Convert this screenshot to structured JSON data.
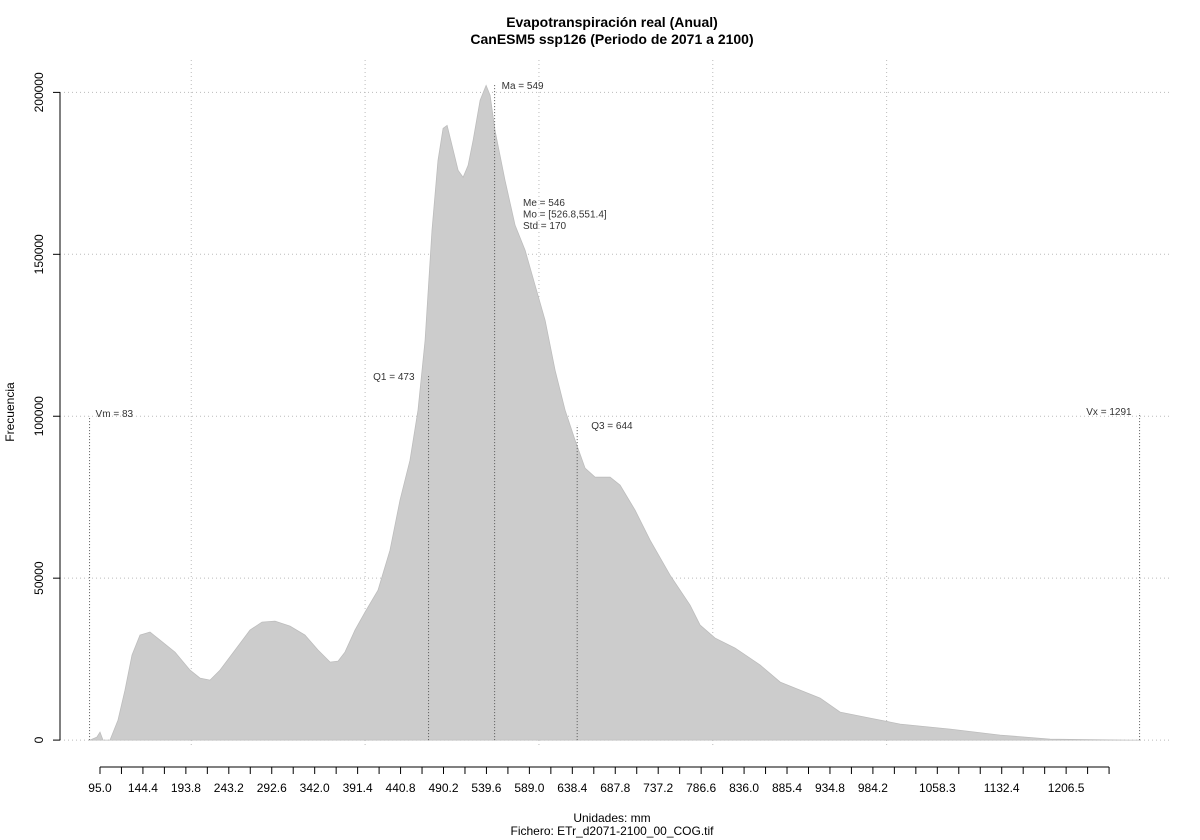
{
  "chart_data": {
    "type": "area",
    "title": "Evapotranspiración real (Anual)",
    "subtitle": "CanESM5 ssp126 (Periodo de 2071 a 2100)",
    "x_label": "Unidades: mm",
    "caption": "Fichero: ETr_d2071-2100_00_COG.tif",
    "y_label": "Frecuencia",
    "color": "#cccccc",
    "x": [
      83.5,
      91.5,
      95,
      98.5,
      106.5,
      115.7,
      123.8,
      131.8,
      141.0,
      152.5,
      164.0,
      181.3,
      198.6,
      210.1,
      221.6,
      233.1,
      250.3,
      267.6,
      281.4,
      296.4,
      313.6,
      330.9,
      345.9,
      359.7,
      368.9,
      376.9,
      388.4,
      399.9,
      414.9,
      428.7,
      440.2,
      451.7,
      460.9,
      469.0,
      477.0,
      483.9,
      489.7,
      494.3,
      500.0,
      507.0,
      512.7,
      518.5,
      524.2,
      532.3,
      539.2,
      543.8,
      549.5,
      561.0,
      572.6,
      584.1,
      595.6,
      607.1,
      618.6,
      630.1,
      641.6,
      653.1,
      664.6,
      681.9,
      693.4,
      710.6,
      727.9,
      750.9,
      773.9,
      785.4,
      802.7,
      825.7,
      854.5,
      877.5,
      900.5,
      923.5,
      946.5,
      981.0,
      1015.6,
      1073.1,
      1130.6,
      1188.2,
      1280.2,
      1291.7
    ],
    "y": [
      0,
      926,
      2469,
      0,
      0,
      6172,
      15432,
      26235,
      32407,
      33333,
      30864,
      27160,
      21605,
      19136,
      18519,
      21605,
      27778,
      33951,
      36420,
      36728,
      35185,
      32407,
      27778,
      24074,
      24383,
      27160,
      33951,
      39506,
      46296,
      58642,
      74074,
      86420,
      101852,
      123457,
      157407,
      179012,
      188889,
      189815,
      183642,
      175926,
      173765,
      177469,
      185185,
      197531,
      202160,
      199074,
      188272,
      172840,
      158951,
      151235,
      140432,
      129630,
      114198,
      101852,
      92593,
      83951,
      81173,
      81173,
      78704,
      70988,
      61728,
      50926,
      41667,
      35494,
      31481,
      28395,
      23148,
      17901,
      15432,
      12963,
      8642,
      6790,
      4938,
      3395,
      1543,
      309,
      0,
      0
    ],
    "xlim": [
      49,
      1326
    ],
    "ylim": [
      -8000,
      210000
    ],
    "xticks": [
      {
        "value": 95,
        "label": "95.0"
      },
      144.4,
      193.8,
      243.2,
      292.6,
      {
        "value": 342,
        "label": "342.0"
      },
      391.4,
      440.8,
      490.2,
      539.6,
      {
        "value": 589,
        "label": "589.0"
      },
      638.4,
      687.8,
      737.2,
      786.6,
      {
        "value": 836,
        "label": "836.0"
      },
      885.4,
      934.8,
      984.2,
      1058.3,
      1132.4,
      1206.5
    ],
    "xminorticks": [
      119.7,
      169.1,
      218.5,
      267.9,
      317.3,
      366.7,
      416.1,
      465.5,
      514.9,
      564.3,
      613.7,
      663.1,
      712.5,
      761.9,
      811.3,
      860.7,
      910.1,
      959.5,
      1008.9,
      1033.6,
      1083.0,
      1107.7,
      1157.1,
      1181.8,
      1231.2,
      1255.9
    ],
    "xgrid": [
      200,
      400,
      600,
      800,
      1000
    ],
    "yticks": [
      0,
      50000,
      100000,
      150000,
      200000
    ],
    "grid": true,
    "markers": [
      {
        "label": "Vm = 83",
        "value": 83
      },
      {
        "label": "Q1 = 473",
        "value": 473
      },
      {
        "label": "Ma = 549",
        "value": 549
      },
      {
        "label": "Q3 = 644",
        "value": 644
      },
      {
        "label": "Vx = 1291",
        "value": 1291
      }
    ],
    "stats": [
      "Me = 546",
      "Mo = [526.8,551.4]",
      "Std = 170"
    ]
  }
}
